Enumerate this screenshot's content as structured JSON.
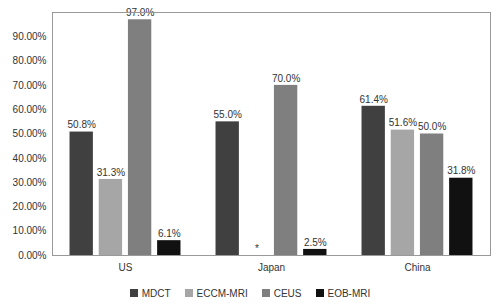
{
  "chart_data": {
    "type": "bar",
    "categories": [
      "US",
      "Japan",
      "China"
    ],
    "series": [
      {
        "name": "MDCT",
        "color": "#404040",
        "values": [
          50.8,
          55.0,
          61.4
        ],
        "value_labels": [
          "50.8%",
          "55.0%",
          "61.4%"
        ]
      },
      {
        "name": "ECCM-MRI",
        "color": "#a6a6a6",
        "values": [
          31.3,
          null,
          51.6
        ],
        "value_labels": [
          "31.3%",
          "*",
          "51.6%"
        ]
      },
      {
        "name": "CEUS",
        "color": "#7f7f7f",
        "values": [
          97.0,
          70.0,
          50.0
        ],
        "value_labels": [
          "97.0%",
          "70.0%",
          "50.0%"
        ]
      },
      {
        "name": "EOB-MRI",
        "color": "#111111",
        "values": [
          6.1,
          2.5,
          31.8
        ],
        "value_labels": [
          "6.1%",
          "2.5%",
          "31.8%"
        ]
      }
    ],
    "ylim": [
      0,
      100
    ],
    "yticks": [
      {
        "value": 0,
        "label": "0.00%"
      },
      {
        "value": 10,
        "label": "10.00%"
      },
      {
        "value": 20,
        "label": "20.00%"
      },
      {
        "value": 30,
        "label": "30.00%"
      },
      {
        "value": 40,
        "label": "40.00%"
      },
      {
        "value": 50,
        "label": "50.00%"
      },
      {
        "value": 60,
        "label": "60.00%"
      },
      {
        "value": 70,
        "label": "70.00%"
      },
      {
        "value": 80,
        "label": "80.00%"
      },
      {
        "value": 90,
        "label": "90.00%"
      }
    ],
    "grid": false,
    "data_labels": true,
    "legend": "bottom"
  }
}
